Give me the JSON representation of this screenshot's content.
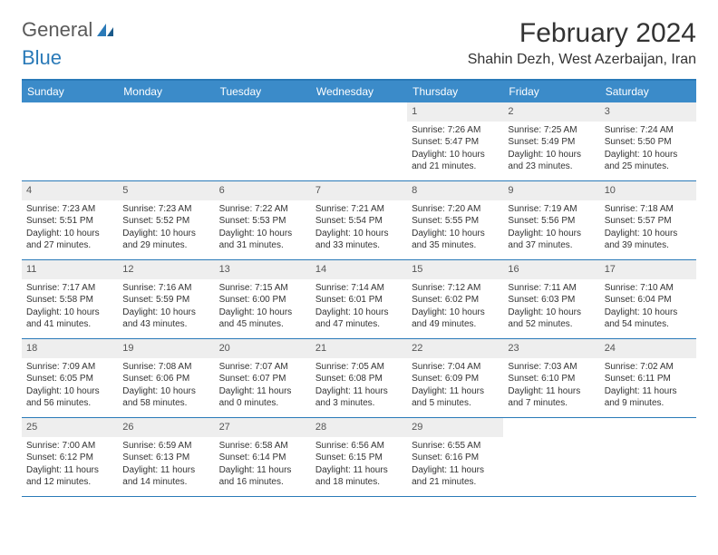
{
  "logo": {
    "word1": "General",
    "word2": "Blue"
  },
  "title": "February 2024",
  "location": "Shahin Dezh, West Azerbaijan, Iran",
  "colors": {
    "header_bg": "#3b8bc9",
    "border": "#2a7ab8",
    "daynum_bg": "#eeeeee",
    "text": "#333333",
    "logo_gray": "#5a5a5a",
    "logo_blue": "#2a7ab8"
  },
  "day_names": [
    "Sunday",
    "Monday",
    "Tuesday",
    "Wednesday",
    "Thursday",
    "Friday",
    "Saturday"
  ],
  "weeks": [
    [
      null,
      null,
      null,
      null,
      {
        "n": "1",
        "sr": "Sunrise: 7:26 AM",
        "ss": "Sunset: 5:47 PM",
        "dl": "Daylight: 10 hours and 21 minutes."
      },
      {
        "n": "2",
        "sr": "Sunrise: 7:25 AM",
        "ss": "Sunset: 5:49 PM",
        "dl": "Daylight: 10 hours and 23 minutes."
      },
      {
        "n": "3",
        "sr": "Sunrise: 7:24 AM",
        "ss": "Sunset: 5:50 PM",
        "dl": "Daylight: 10 hours and 25 minutes."
      }
    ],
    [
      {
        "n": "4",
        "sr": "Sunrise: 7:23 AM",
        "ss": "Sunset: 5:51 PM",
        "dl": "Daylight: 10 hours and 27 minutes."
      },
      {
        "n": "5",
        "sr": "Sunrise: 7:23 AM",
        "ss": "Sunset: 5:52 PM",
        "dl": "Daylight: 10 hours and 29 minutes."
      },
      {
        "n": "6",
        "sr": "Sunrise: 7:22 AM",
        "ss": "Sunset: 5:53 PM",
        "dl": "Daylight: 10 hours and 31 minutes."
      },
      {
        "n": "7",
        "sr": "Sunrise: 7:21 AM",
        "ss": "Sunset: 5:54 PM",
        "dl": "Daylight: 10 hours and 33 minutes."
      },
      {
        "n": "8",
        "sr": "Sunrise: 7:20 AM",
        "ss": "Sunset: 5:55 PM",
        "dl": "Daylight: 10 hours and 35 minutes."
      },
      {
        "n": "9",
        "sr": "Sunrise: 7:19 AM",
        "ss": "Sunset: 5:56 PM",
        "dl": "Daylight: 10 hours and 37 minutes."
      },
      {
        "n": "10",
        "sr": "Sunrise: 7:18 AM",
        "ss": "Sunset: 5:57 PM",
        "dl": "Daylight: 10 hours and 39 minutes."
      }
    ],
    [
      {
        "n": "11",
        "sr": "Sunrise: 7:17 AM",
        "ss": "Sunset: 5:58 PM",
        "dl": "Daylight: 10 hours and 41 minutes."
      },
      {
        "n": "12",
        "sr": "Sunrise: 7:16 AM",
        "ss": "Sunset: 5:59 PM",
        "dl": "Daylight: 10 hours and 43 minutes."
      },
      {
        "n": "13",
        "sr": "Sunrise: 7:15 AM",
        "ss": "Sunset: 6:00 PM",
        "dl": "Daylight: 10 hours and 45 minutes."
      },
      {
        "n": "14",
        "sr": "Sunrise: 7:14 AM",
        "ss": "Sunset: 6:01 PM",
        "dl": "Daylight: 10 hours and 47 minutes."
      },
      {
        "n": "15",
        "sr": "Sunrise: 7:12 AM",
        "ss": "Sunset: 6:02 PM",
        "dl": "Daylight: 10 hours and 49 minutes."
      },
      {
        "n": "16",
        "sr": "Sunrise: 7:11 AM",
        "ss": "Sunset: 6:03 PM",
        "dl": "Daylight: 10 hours and 52 minutes."
      },
      {
        "n": "17",
        "sr": "Sunrise: 7:10 AM",
        "ss": "Sunset: 6:04 PM",
        "dl": "Daylight: 10 hours and 54 minutes."
      }
    ],
    [
      {
        "n": "18",
        "sr": "Sunrise: 7:09 AM",
        "ss": "Sunset: 6:05 PM",
        "dl": "Daylight: 10 hours and 56 minutes."
      },
      {
        "n": "19",
        "sr": "Sunrise: 7:08 AM",
        "ss": "Sunset: 6:06 PM",
        "dl": "Daylight: 10 hours and 58 minutes."
      },
      {
        "n": "20",
        "sr": "Sunrise: 7:07 AM",
        "ss": "Sunset: 6:07 PM",
        "dl": "Daylight: 11 hours and 0 minutes."
      },
      {
        "n": "21",
        "sr": "Sunrise: 7:05 AM",
        "ss": "Sunset: 6:08 PM",
        "dl": "Daylight: 11 hours and 3 minutes."
      },
      {
        "n": "22",
        "sr": "Sunrise: 7:04 AM",
        "ss": "Sunset: 6:09 PM",
        "dl": "Daylight: 11 hours and 5 minutes."
      },
      {
        "n": "23",
        "sr": "Sunrise: 7:03 AM",
        "ss": "Sunset: 6:10 PM",
        "dl": "Daylight: 11 hours and 7 minutes."
      },
      {
        "n": "24",
        "sr": "Sunrise: 7:02 AM",
        "ss": "Sunset: 6:11 PM",
        "dl": "Daylight: 11 hours and 9 minutes."
      }
    ],
    [
      {
        "n": "25",
        "sr": "Sunrise: 7:00 AM",
        "ss": "Sunset: 6:12 PM",
        "dl": "Daylight: 11 hours and 12 minutes."
      },
      {
        "n": "26",
        "sr": "Sunrise: 6:59 AM",
        "ss": "Sunset: 6:13 PM",
        "dl": "Daylight: 11 hours and 14 minutes."
      },
      {
        "n": "27",
        "sr": "Sunrise: 6:58 AM",
        "ss": "Sunset: 6:14 PM",
        "dl": "Daylight: 11 hours and 16 minutes."
      },
      {
        "n": "28",
        "sr": "Sunrise: 6:56 AM",
        "ss": "Sunset: 6:15 PM",
        "dl": "Daylight: 11 hours and 18 minutes."
      },
      {
        "n": "29",
        "sr": "Sunrise: 6:55 AM",
        "ss": "Sunset: 6:16 PM",
        "dl": "Daylight: 11 hours and 21 minutes."
      },
      null,
      null
    ]
  ]
}
